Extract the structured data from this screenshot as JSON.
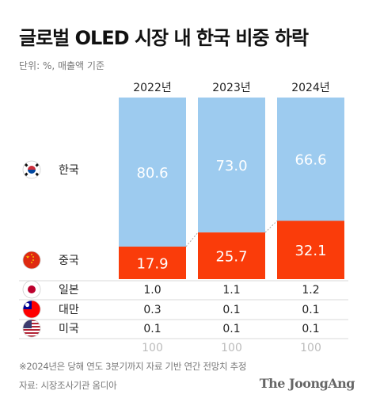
{
  "title": "글로벌 OLED 시장 내 한국 비중 하락",
  "unit_note": "단위: %, 매출액 기준",
  "footnote": "※2024년은 당해 연도 3분기까지 자료 기반 연간 전망치 추정",
  "source": "자료: 시장조사기관 옴디아",
  "brand": "The JoongAng",
  "colors": {
    "korea": "#9dcbef",
    "china": "#fa3c0a",
    "text_on_bar": "#ffffff",
    "grid": "#d9d9d9",
    "total": "#bbbbbb"
  },
  "chart_data": {
    "type": "bar",
    "stacked": true,
    "categories": [
      "2022년",
      "2023년",
      "2024년"
    ],
    "series": [
      {
        "name": "한국",
        "flag": "korea-flag",
        "values": [
          "80.6",
          "73.0",
          "66.6"
        ]
      },
      {
        "name": "중국",
        "flag": "china-flag",
        "values": [
          "17.9",
          "25.7",
          "32.1"
        ]
      }
    ],
    "table_rows": [
      {
        "name": "일본",
        "flag": "japan-flag",
        "values": [
          "1.0",
          "1.1",
          "1.2"
        ]
      },
      {
        "name": "대만",
        "flag": "taiwan-flag",
        "values": [
          "0.3",
          "0.1",
          "0.1"
        ]
      },
      {
        "name": "미국",
        "flag": "usa-flag",
        "values": [
          "0.1",
          "0.1",
          "0.1"
        ]
      }
    ],
    "totals": [
      "100",
      "100",
      "100"
    ],
    "ylim": [
      0,
      100
    ]
  }
}
